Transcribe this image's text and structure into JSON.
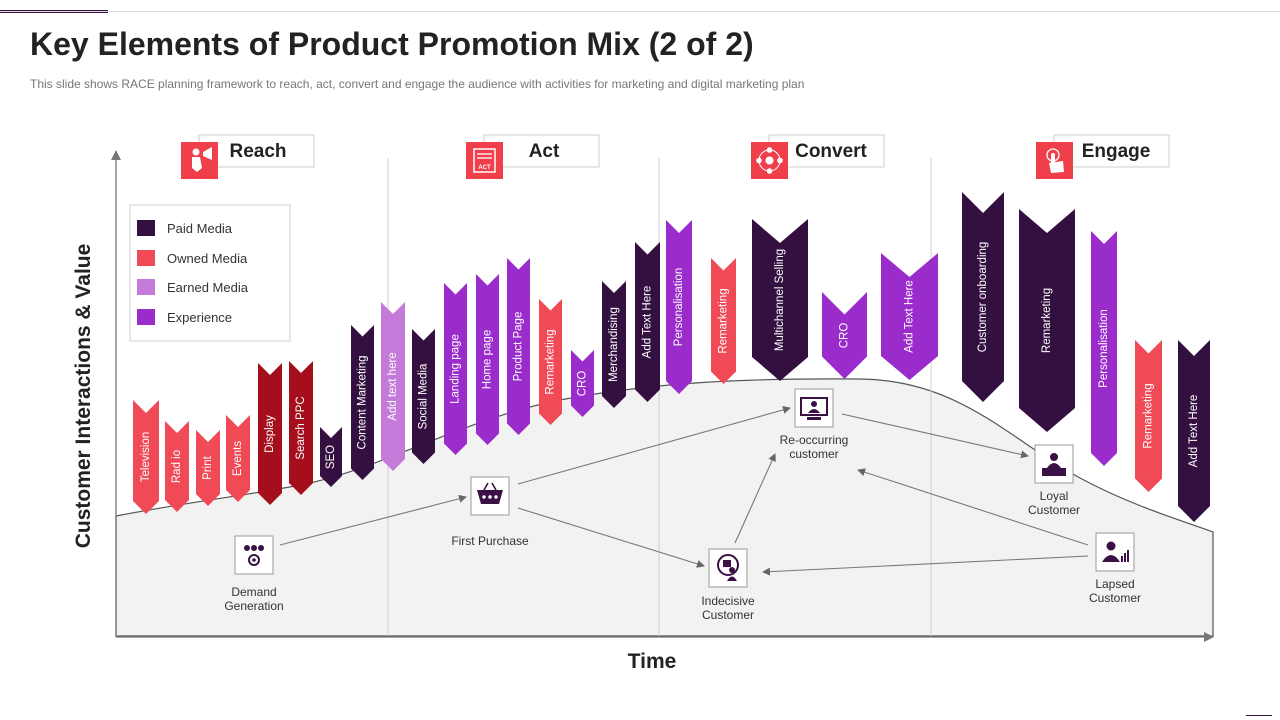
{
  "header": {
    "title": "Key Elements of Product Promotion Mix (2 of 2)",
    "subtitle": "This slide shows RACE planning framework to reach, act, convert and engage the audience with activities for marketing and digital marketing plan"
  },
  "axes": {
    "y_title": "Customer Interactions & Value",
    "x_title": "Time"
  },
  "colors": {
    "paid": "#341040",
    "owned": "#f04a57",
    "earned": "#c37ad8",
    "experience": "#9a2ccb",
    "dark_red": "#a50f1c",
    "stage_icon": "#ee3f4b"
  },
  "legend": [
    {
      "label": "Paid Media",
      "color": "#341040"
    },
    {
      "label": "Owned Media",
      "color": "#f04a57"
    },
    {
      "label": "Earned Media",
      "color": "#c37ad8"
    },
    {
      "label": "Experience",
      "color": "#9a2ccb"
    }
  ],
  "stages": [
    {
      "label": "Reach",
      "icon": "person-megaphone-icon",
      "icon_text": ""
    },
    {
      "label": "Act",
      "icon": "act-board-icon",
      "icon_text": "ACT"
    },
    {
      "label": "Convert",
      "icon": "network-hub-icon",
      "icon_text": ""
    },
    {
      "label": "Engage",
      "icon": "hand-tap-icon",
      "icon_text": ""
    }
  ],
  "flags": [
    {
      "label": "Television",
      "media": "owned"
    },
    {
      "label": "Rad io",
      "media": "owned"
    },
    {
      "label": "Print",
      "media": "owned"
    },
    {
      "label": "Events",
      "media": "owned"
    },
    {
      "label": "Display",
      "media": "dark_red"
    },
    {
      "label": "Search PPC",
      "media": "dark_red"
    },
    {
      "label": "SEO",
      "media": "paid"
    },
    {
      "label": "Content Marketing",
      "media": "paid"
    },
    {
      "label": "Add text here",
      "media": "earned"
    },
    {
      "label": "Social Media",
      "media": "paid"
    },
    {
      "label": "Landing page",
      "media": "experience"
    },
    {
      "label": "Home page",
      "media": "experience"
    },
    {
      "label": "Product Page",
      "media": "experience"
    },
    {
      "label": "Remarketing",
      "media": "owned"
    },
    {
      "label": "CRO",
      "media": "experience"
    },
    {
      "label": "Merchandising",
      "media": "paid"
    },
    {
      "label": "Add Text Here",
      "media": "paid"
    },
    {
      "label": "Personalisation",
      "media": "experience"
    },
    {
      "label": "Remarketing",
      "media": "owned"
    },
    {
      "label": "Multichannel Selling",
      "media": "paid"
    },
    {
      "label": "CRO",
      "media": "experience"
    },
    {
      "label": "Add Text Here",
      "media": "experience"
    },
    {
      "label": "Customer onboarding",
      "media": "paid"
    },
    {
      "label": "Remarketing",
      "media": "paid"
    },
    {
      "label": "Personalisation",
      "media": "experience"
    },
    {
      "label": "Remarketing",
      "media": "owned"
    },
    {
      "label": "Add Text Here",
      "media": "paid"
    }
  ],
  "nodes": [
    {
      "id": "demand",
      "lines": [
        "Demand",
        "Generation"
      ],
      "icon": "people-gear-icon"
    },
    {
      "id": "first",
      "lines": [
        "First Purchase"
      ],
      "icon": "shopping-basket-icon"
    },
    {
      "id": "indecisive",
      "lines": [
        "Indecisive",
        "Customer"
      ],
      "icon": "thinking-person-icon"
    },
    {
      "id": "reoccur",
      "lines": [
        "Re-occurring",
        "customer"
      ],
      "icon": "monitor-user-icon"
    },
    {
      "id": "loyal",
      "lines": [
        "Loyal",
        "Customer"
      ],
      "icon": "cashier-icon"
    },
    {
      "id": "lapsed",
      "lines": [
        "Lapsed",
        "Customer"
      ],
      "icon": "user-chart-icon"
    }
  ],
  "edges": [
    {
      "from": "demand",
      "to": "first"
    },
    {
      "from": "first",
      "to": "reoccur"
    },
    {
      "from": "first",
      "to": "indecisive"
    },
    {
      "from": "indecisive",
      "to": "reoccur"
    },
    {
      "from": "reoccur",
      "to": "loyal"
    },
    {
      "from": "lapsed",
      "to": "reoccur"
    },
    {
      "from": "lapsed",
      "to": "indecisive"
    }
  ]
}
